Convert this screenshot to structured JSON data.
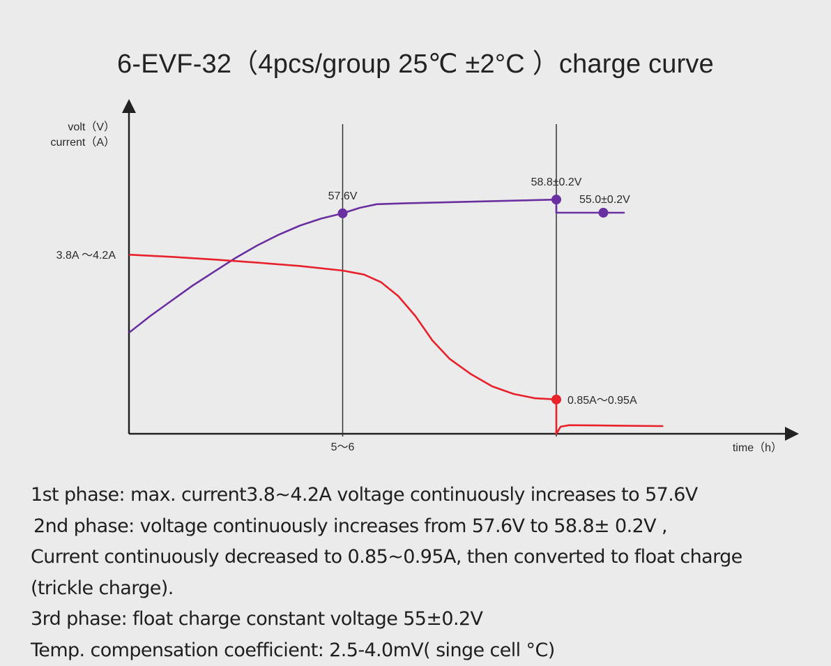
{
  "chart_data": {
    "type": "line",
    "title": "6-EVF-32（4pcs/group  25℃ ±2°C ）charge curve",
    "xlabel": "time（h）",
    "ylabel_lines": [
      "volt（V）",
      "current（A）"
    ],
    "x_ticks": [
      {
        "x": 5.0,
        "label": "5～6"
      }
    ],
    "x_markers": [
      5.0,
      10.0
    ],
    "xlim": [
      0,
      15.5
    ],
    "ylim": [
      0,
      100
    ],
    "grid": false,
    "legend": "none",
    "series": [
      {
        "color": "#6a2fa0",
        "points": [
          [
            0,
            33
          ],
          [
            0.5,
            38.5
          ],
          [
            1,
            43.5
          ],
          [
            1.5,
            48.5
          ],
          [
            2,
            53
          ],
          [
            2.5,
            57.5
          ],
          [
            3,
            61.5
          ],
          [
            3.5,
            65
          ],
          [
            4,
            68
          ],
          [
            4.5,
            70.3
          ],
          [
            5,
            72
          ],
          [
            5.4,
            73.8
          ],
          [
            5.8,
            75
          ],
          [
            6.5,
            75.3
          ],
          [
            8,
            75.8
          ],
          [
            10,
            76.5
          ],
          [
            10,
            72.2
          ],
          [
            11,
            72.2
          ],
          [
            11.6,
            72.2
          ]
        ],
        "markers": [
          {
            "x": 5,
            "y": 72,
            "label": "57.6V",
            "label_pos": "above"
          },
          {
            "x": 10,
            "y": 76.5,
            "label": "58.8±0.2V",
            "label_pos": "above"
          },
          {
            "x": 11.1,
            "y": 72.2,
            "label": "55.0±0.2V",
            "label_pos": "above-left"
          }
        ]
      },
      {
        "color": "#e8212a",
        "points": [
          [
            0,
            58.5
          ],
          [
            1,
            57.8
          ],
          [
            2,
            56.9
          ],
          [
            3,
            55.9
          ],
          [
            4,
            54.8
          ],
          [
            5,
            53.3
          ],
          [
            5.5,
            52
          ],
          [
            5.9,
            49.5
          ],
          [
            6.3,
            45
          ],
          [
            6.7,
            38.5
          ],
          [
            7.1,
            30.5
          ],
          [
            7.5,
            24.5
          ],
          [
            8,
            19.5
          ],
          [
            8.5,
            15.5
          ],
          [
            9,
            13
          ],
          [
            9.5,
            11.6
          ],
          [
            10,
            11.2
          ],
          [
            10,
            0
          ],
          [
            10.1,
            2.3
          ],
          [
            10.3,
            2.8
          ],
          [
            11,
            2.7
          ],
          [
            12.5,
            2.5
          ]
        ],
        "markers": [
          {
            "x": 10,
            "y": 11.2,
            "label": "0.85A～0.95A",
            "label_pos": "right"
          }
        ],
        "start_label": "3.8A ～4.2A"
      }
    ]
  },
  "notes": [
    "1st phase: max. current3.8~4.2A  voltage continuously increases to 57.6V",
    "2nd phase: voltage continuously increases from 57.6V to 58.8± 0.2V ,",
    "Current continuously decreased to 0.85~0.95A, then converted to float charge",
    "(trickle charge).",
    "3rd phase: float charge constant voltage 55±0.2V",
    "Temp. compensation  coefficient:  2.5-4.0mV( singe cell °C)"
  ]
}
